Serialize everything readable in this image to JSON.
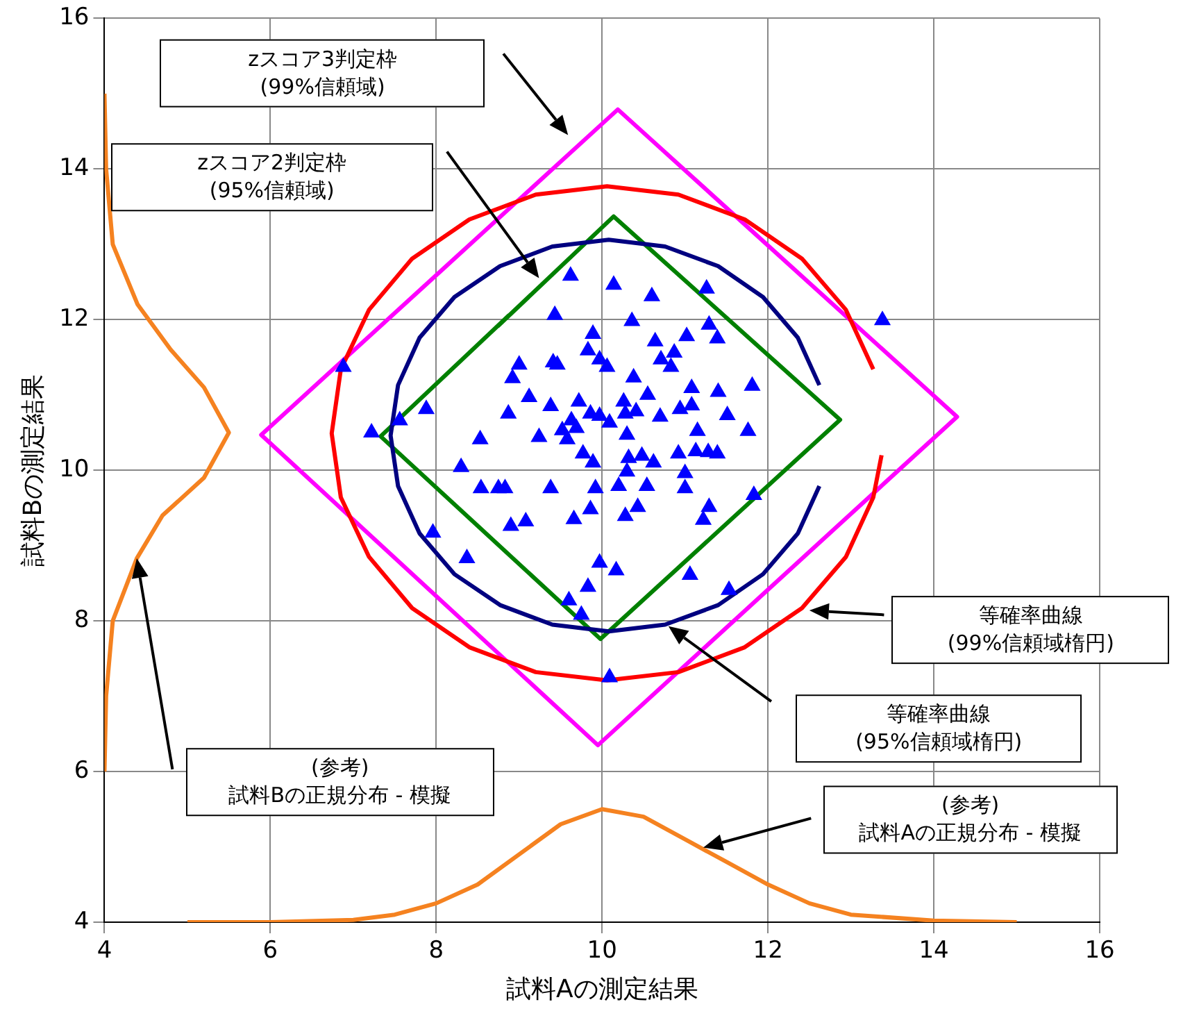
{
  "chart_data": {
    "type": "scatter",
    "xlabel": "試料Aの測定結果",
    "ylabel": "試料Bの測定結果",
    "xlim": [
      4,
      16
    ],
    "ylim": [
      4,
      16
    ],
    "xticks": [
      4,
      6,
      8,
      10,
      12,
      14,
      16
    ],
    "yticks": [
      4,
      6,
      8,
      10,
      12,
      14,
      16
    ],
    "grid": true,
    "legend": false,
    "series": [
      {
        "marker": "triangle",
        "color": "#0000ff",
        "x": [
          6.88,
          7.22,
          7.56,
          7.88,
          8.3,
          8.53,
          8.54,
          8.75,
          8.83,
          7.96,
          8.37,
          8.9,
          9.08,
          8.87,
          8.92,
          9.0,
          9.12,
          9.24,
          9.38,
          9.38,
          9.41,
          9.46,
          9.43,
          9.62,
          9.89,
          9.83,
          9.97,
          10.06,
          9.72,
          9.52,
          9.58,
          9.63,
          9.69,
          9.77,
          9.89,
          9.86,
          9.97,
          10.09,
          9.92,
          9.86,
          9.66,
          9.97,
          9.83,
          9.6,
          9.75,
          10.09,
          10.17,
          10.2,
          10.14,
          10.6,
          11.26,
          10.36,
          10.64,
          11.02,
          11.29,
          11.39,
          10.71,
          10.87,
          10.83,
          10.38,
          11.08,
          11.4,
          11.81,
          10.55,
          10.26,
          10.41,
          10.28,
          10.7,
          10.94,
          11.08,
          11.51,
          10.3,
          11.15,
          11.76,
          10.32,
          10.48,
          10.62,
          10.92,
          11.13,
          11.28,
          11.39,
          10.3,
          10.54,
          11.0,
          11.0,
          11.83,
          10.43,
          10.28,
          11.29,
          11.22,
          11.06,
          11.53,
          13.38
        ],
        "values": [
          11.37,
          10.5,
          10.66,
          10.81,
          10.04,
          10.41,
          9.76,
          9.76,
          9.76,
          9.17,
          8.83,
          9.26,
          9.32,
          10.75,
          11.22,
          11.4,
          10.97,
          10.44,
          10.85,
          9.76,
          11.43,
          11.4,
          12.06,
          12.58,
          11.81,
          11.59,
          11.47,
          11.37,
          10.91,
          10.53,
          10.41,
          10.66,
          10.56,
          10.22,
          10.1,
          10.75,
          10.72,
          10.63,
          9.76,
          9.48,
          9.35,
          8.77,
          8.45,
          8.27,
          8.08,
          7.25,
          8.67,
          9.79,
          12.46,
          12.31,
          12.41,
          11.98,
          11.71,
          11.78,
          11.93,
          11.75,
          11.47,
          11.56,
          11.37,
          11.23,
          11.09,
          11.04,
          11.12,
          11.0,
          10.91,
          10.78,
          10.75,
          10.71,
          10.81,
          10.86,
          10.73,
          10.47,
          10.52,
          10.52,
          10.16,
          10.19,
          10.1,
          10.22,
          10.25,
          10.24,
          10.22,
          9.98,
          9.79,
          9.96,
          9.76,
          9.67,
          9.51,
          9.39,
          9.51,
          9.34,
          8.61,
          8.41,
          11.99
        ]
      },
      {
        "type": "line",
        "marker": "none",
        "color": "#ff0000",
        "x": [
          13.27,
          12.94,
          12.41,
          11.72,
          10.92,
          10.06,
          9.2,
          8.4,
          7.71,
          7.19,
          6.85,
          6.74,
          6.85,
          7.19,
          7.71,
          8.4,
          9.2,
          10.06,
          10.92,
          11.72,
          12.41,
          12.94,
          13.27,
          13.37
        ],
        "values": [
          11.34,
          12.13,
          12.81,
          13.33,
          13.66,
          13.77,
          13.66,
          13.33,
          12.81,
          12.13,
          11.34,
          10.49,
          9.64,
          8.85,
          8.17,
          7.65,
          7.32,
          7.21,
          7.32,
          7.65,
          8.17,
          8.85,
          9.64,
          10.2
        ]
      },
      {
        "type": "line",
        "marker": "none",
        "color": "#000080",
        "x": [
          12.62,
          12.36,
          11.94,
          11.4,
          10.76,
          10.08,
          9.4,
          8.77,
          8.22,
          7.8,
          7.54,
          7.45,
          7.54,
          7.8,
          8.22,
          8.77,
          9.4,
          10.08,
          10.76,
          11.4,
          11.94,
          12.36,
          12.62
        ],
        "values": [
          11.13,
          11.76,
          12.3,
          12.71,
          12.97,
          13.06,
          12.97,
          12.71,
          12.3,
          11.76,
          11.13,
          10.46,
          9.79,
          9.16,
          8.62,
          8.21,
          7.95,
          7.86,
          7.95,
          8.21,
          8.62,
          9.16,
          9.79
        ]
      },
      {
        "type": "line",
        "marker": "none",
        "color": "#ff00ff",
        "x": [
          8.04,
          10.19,
          14.28,
          9.95,
          5.89,
          8.26
        ],
        "values": [
          12.63,
          14.79,
          10.71,
          6.35,
          10.47,
          12.85
        ]
      },
      {
        "type": "line",
        "marker": "none",
        "color": "#008000",
        "x": [
          8.74,
          10.14,
          12.87,
          9.98,
          7.33,
          8.88
        ],
        "values": [
          11.91,
          13.37,
          10.67,
          7.76,
          10.45,
          12.06
        ]
      },
      {
        "type": "line",
        "marker": "none",
        "color": "#f58220",
        "x": [
          5,
          6,
          7,
          7.5,
          8,
          8.5,
          9,
          9.5,
          10,
          10.5,
          11,
          11.5,
          12,
          12.5,
          13,
          14,
          15
        ],
        "values": [
          4.0,
          4.0,
          4.03,
          4.1,
          4.25,
          4.5,
          4.9,
          5.3,
          5.5,
          5.4,
          5.1,
          4.8,
          4.5,
          4.25,
          4.1,
          4.02,
          4.0
        ]
      },
      {
        "type": "line",
        "marker": "none",
        "color": "#f58220",
        "x": [
          4.0,
          4.02,
          4.1,
          4.39,
          4.7,
          5.2,
          5.5,
          5.2,
          4.8,
          4.4,
          4.1,
          4.02,
          4.0
        ],
        "values": [
          6,
          7,
          8,
          8.83,
          9.4,
          9.9,
          10.5,
          11.1,
          11.6,
          12.2,
          13,
          14,
          15
        ]
      }
    ],
    "annotations": [
      "zスコア3判定枠\n(99%信頼域)",
      "zスコア2判定枠\n(95%信頼域)",
      "等確率曲線\n(99%信頼域楕円)",
      "等確率曲線\n(95%信頼域楕円)",
      "(参考)\n試料Bの正規分布 - 模擬",
      "(参考)\n試料Aの正規分布 - 模擬"
    ]
  }
}
